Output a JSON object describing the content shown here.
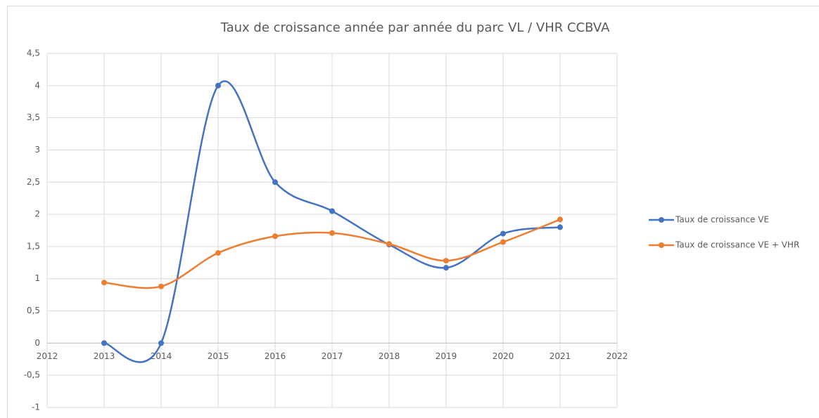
{
  "chart_data": {
    "type": "line",
    "title": "Taux de croissance année par année du parc VL / VHR CCBVA",
    "x": [
      2013,
      2014,
      2015,
      2016,
      2017,
      2018,
      2019,
      2020,
      2021
    ],
    "series": [
      {
        "name": "Taux de croissance VE",
        "color": "#4472c4",
        "values": [
          0,
          0,
          4,
          2.5,
          2.05,
          1.53,
          1.17,
          1.7,
          1.8
        ]
      },
      {
        "name": "Taux de croissance VE + VHR",
        "color": "#ed7d31",
        "values": [
          0.94,
          0.88,
          1.4,
          1.66,
          1.71,
          1.54,
          1.28,
          1.57,
          1.92
        ]
      }
    ],
    "xlim": [
      2012,
      2022
    ],
    "xticks": [
      2012,
      2013,
      2014,
      2015,
      2016,
      2017,
      2018,
      2019,
      2020,
      2021,
      2022
    ],
    "ylim": [
      -1,
      4.5
    ],
    "yticks": [
      -1,
      {
        "value": -0.5,
        "label": "-0,5"
      },
      0,
      {
        "value": 0.5,
        "label": "0,5"
      },
      1,
      {
        "value": 1.5,
        "label": "1,5"
      },
      2,
      {
        "value": 2.5,
        "label": "2,5"
      },
      3,
      {
        "value": 3.5,
        "label": "3,5"
      },
      4,
      {
        "value": 4.5,
        "label": "4,5"
      }
    ],
    "grid": true,
    "smooth": true,
    "legend": "right"
  }
}
